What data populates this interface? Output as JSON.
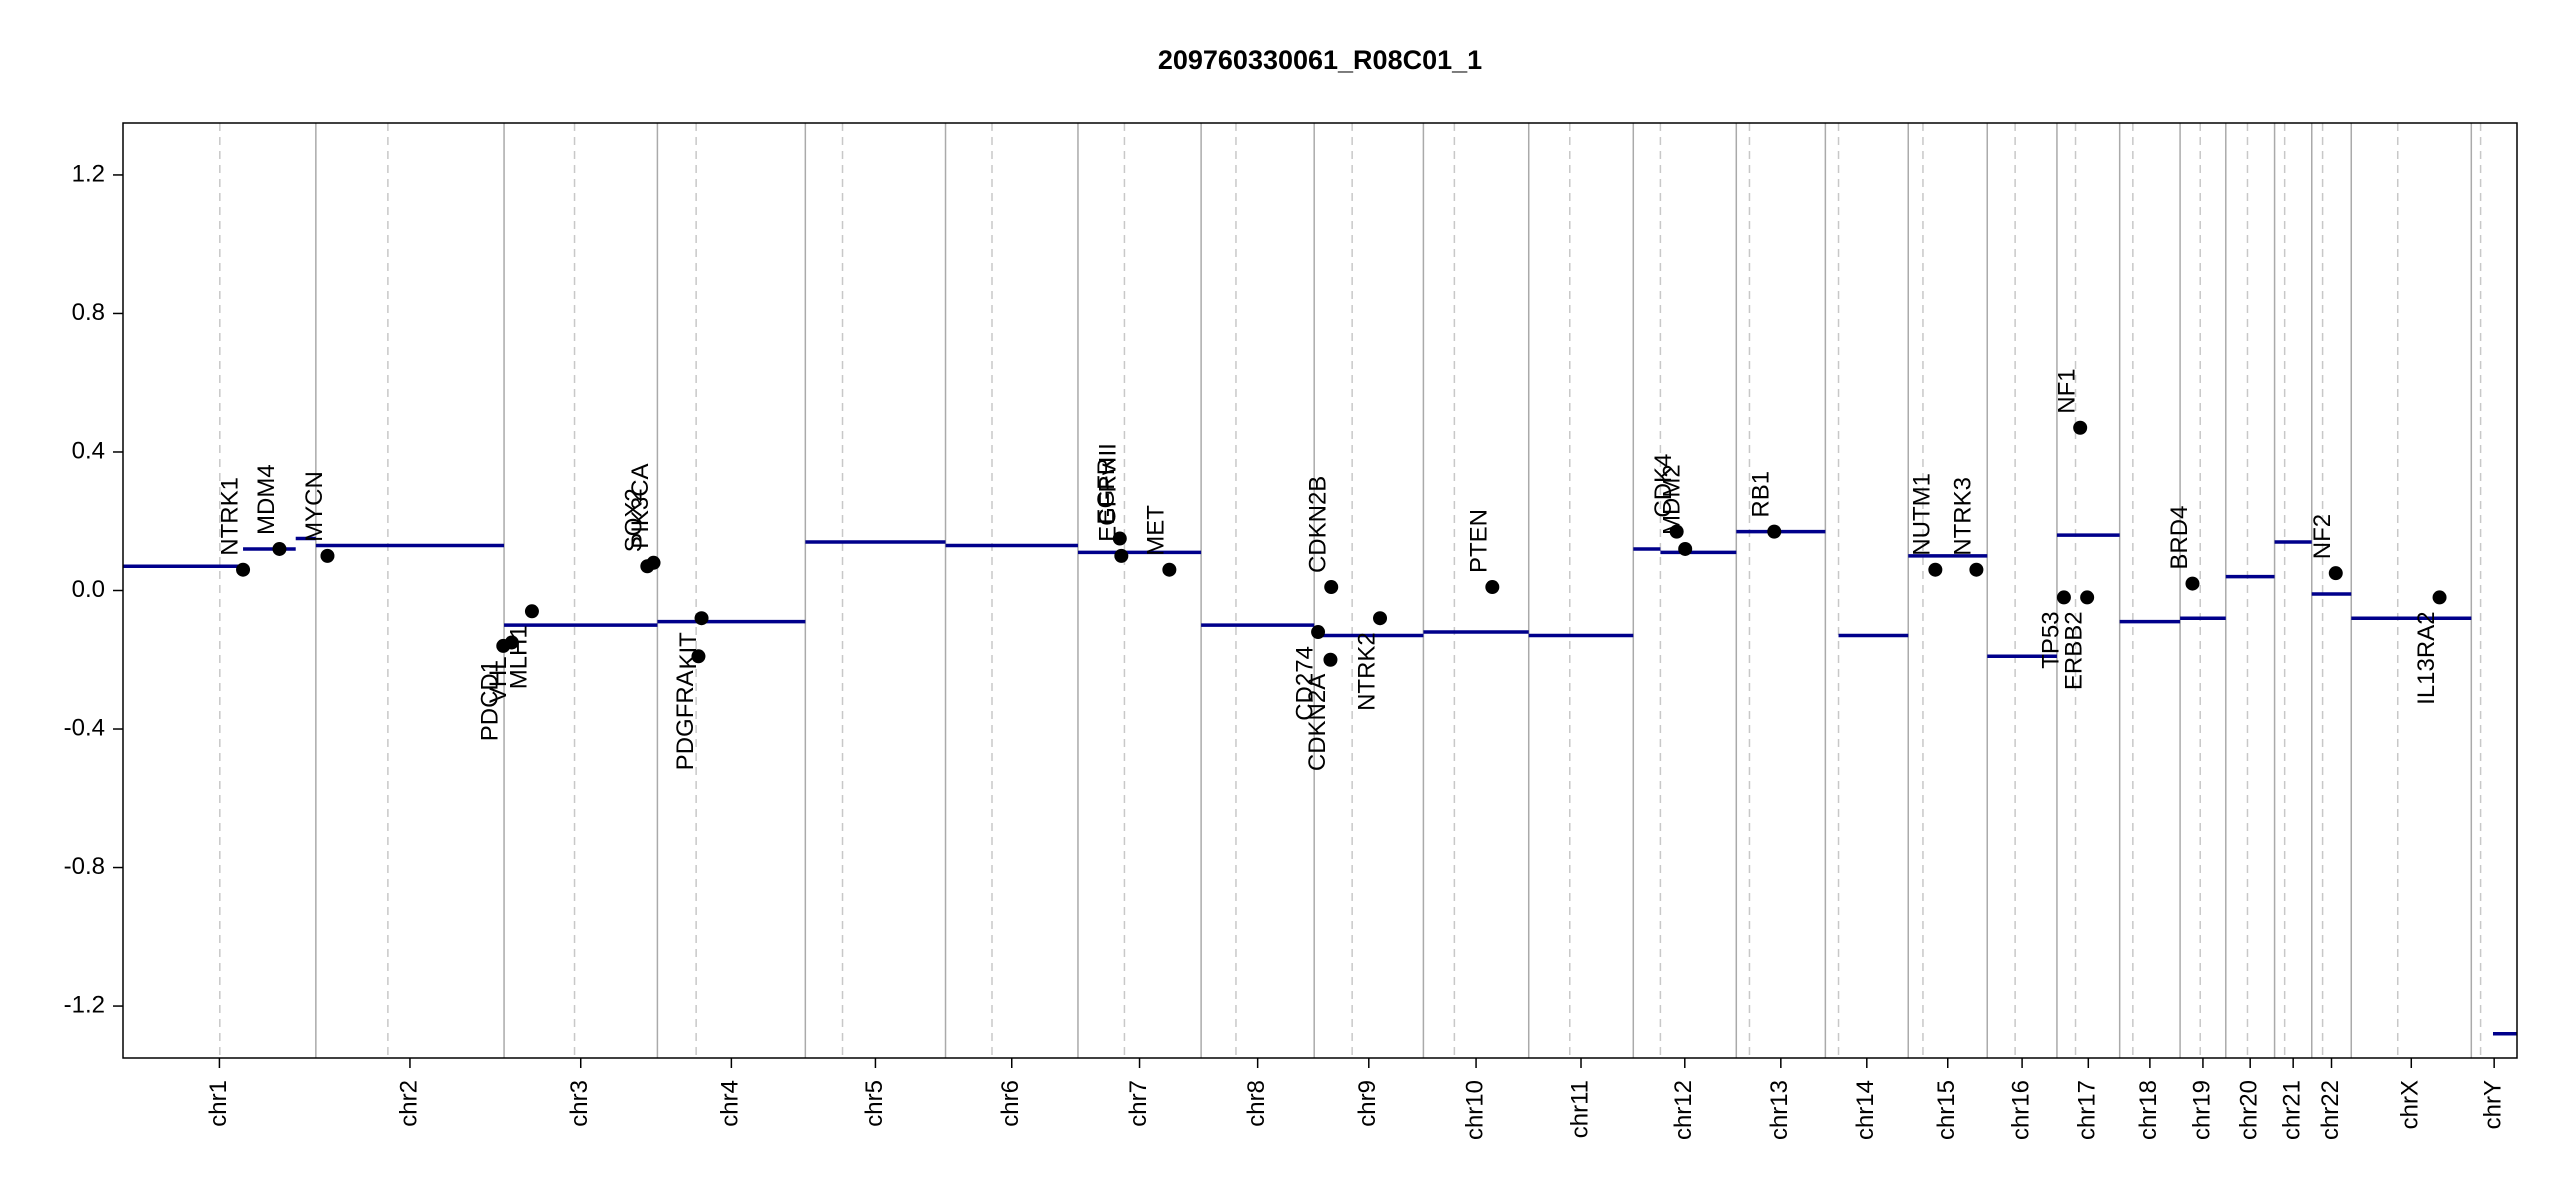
{
  "chart_data": {
    "type": "scatter",
    "title": "209760330061_R08C01_1",
    "xlim": [
      0,
      3091
    ],
    "ylim": [
      -1.35,
      1.35
    ],
    "yticks": [
      -1.2,
      -0.8,
      -0.4,
      {
        "value": 0,
        "label": "0.0"
      },
      0.4,
      0.8,
      1.2
    ],
    "segment_color": "#00008b",
    "gene_color": "#000000",
    "chromosomes": [
      {
        "name": "chr1",
        "start": 0,
        "end": 249,
        "centromere": 125
      },
      {
        "name": "chr2",
        "start": 249,
        "end": 492,
        "centromere": 342
      },
      {
        "name": "chr3",
        "start": 492,
        "end": 690,
        "centromere": 583
      },
      {
        "name": "chr4",
        "start": 690,
        "end": 881,
        "centromere": 740
      },
      {
        "name": "chr5",
        "start": 881,
        "end": 1062,
        "centromere": 929
      },
      {
        "name": "chr6",
        "start": 1062,
        "end": 1233,
        "centromere": 1122
      },
      {
        "name": "chr7",
        "start": 1233,
        "end": 1392,
        "centromere": 1293
      },
      {
        "name": "chr8",
        "start": 1392,
        "end": 1538,
        "centromere": 1437
      },
      {
        "name": "chr9",
        "start": 1538,
        "end": 1679,
        "centromere": 1587
      },
      {
        "name": "chr10",
        "start": 1679,
        "end": 1815,
        "centromere": 1719
      },
      {
        "name": "chr11",
        "start": 1815,
        "end": 1950,
        "centromere": 1868
      },
      {
        "name": "chr12",
        "start": 1950,
        "end": 2083,
        "centromere": 1985
      },
      {
        "name": "chr13",
        "start": 2083,
        "end": 2198,
        "centromere": 2100
      },
      {
        "name": "chr14",
        "start": 2198,
        "end": 2305,
        "centromere": 2215
      },
      {
        "name": "chr15",
        "start": 2305,
        "end": 2407,
        "centromere": 2324
      },
      {
        "name": "chr16",
        "start": 2407,
        "end": 2497,
        "centromere": 2443
      },
      {
        "name": "chr17",
        "start": 2497,
        "end": 2578,
        "centromere": 2521
      },
      {
        "name": "chr18",
        "start": 2578,
        "end": 2656,
        "centromere": 2595
      },
      {
        "name": "chr19",
        "start": 2656,
        "end": 2715,
        "centromere": 2682
      },
      {
        "name": "chr20",
        "start": 2715,
        "end": 2778,
        "centromere": 2743
      },
      {
        "name": "chr21",
        "start": 2778,
        "end": 2826,
        "centromere": 2791
      },
      {
        "name": "chr22",
        "start": 2826,
        "end": 2877,
        "centromere": 2840
      },
      {
        "name": "chrX",
        "start": 2877,
        "end": 3032,
        "centromere": 2937
      },
      {
        "name": "chrY",
        "start": 3032,
        "end": 3091,
        "centromere": 3044
      }
    ],
    "segments": [
      {
        "start": 0,
        "end": 155,
        "value": 0.07
      },
      {
        "start": 155,
        "end": 223,
        "value": 0.12
      },
      {
        "start": 223,
        "end": 249,
        "value": 0.15
      },
      {
        "start": 249,
        "end": 492,
        "value": 0.13
      },
      {
        "start": 492,
        "end": 690,
        "value": -0.1
      },
      {
        "start": 690,
        "end": 881,
        "value": -0.09
      },
      {
        "start": 881,
        "end": 1062,
        "value": 0.14
      },
      {
        "start": 1062,
        "end": 1233,
        "value": 0.13
      },
      {
        "start": 1233,
        "end": 1392,
        "value": 0.11
      },
      {
        "start": 1392,
        "end": 1538,
        "value": -0.1
      },
      {
        "start": 1538,
        "end": 1679,
        "value": -0.13
      },
      {
        "start": 1679,
        "end": 1815,
        "value": -0.12
      },
      {
        "start": 1815,
        "end": 1950,
        "value": -0.13
      },
      {
        "start": 1950,
        "end": 1985,
        "value": 0.12
      },
      {
        "start": 1985,
        "end": 2083,
        "value": 0.11
      },
      {
        "start": 2083,
        "end": 2198,
        "value": 0.17
      },
      {
        "start": 2215,
        "end": 2305,
        "value": -0.13
      },
      {
        "start": 2305,
        "end": 2407,
        "value": 0.1
      },
      {
        "start": 2407,
        "end": 2497,
        "value": -0.19
      },
      {
        "start": 2497,
        "end": 2578,
        "value": 0.16
      },
      {
        "start": 2578,
        "end": 2656,
        "value": -0.09
      },
      {
        "start": 2656,
        "end": 2715,
        "value": -0.08
      },
      {
        "start": 2715,
        "end": 2778,
        "value": 0.04
      },
      {
        "start": 2778,
        "end": 2826,
        "value": 0.14
      },
      {
        "start": 2826,
        "end": 2877,
        "value": -0.01
      },
      {
        "start": 2877,
        "end": 3032,
        "value": -0.08
      },
      {
        "start": 3060,
        "end": 3091,
        "value": -1.28
      }
    ],
    "genes": [
      {
        "name": "NTRK1",
        "x": 155,
        "value": 0.06
      },
      {
        "name": "MDM4",
        "x": 202,
        "value": 0.12
      },
      {
        "name": "MYCN",
        "x": 264,
        "value": 0.1
      },
      {
        "name": "PDCD1",
        "x": 491,
        "value": -0.16
      },
      {
        "name": "VHL",
        "x": 502,
        "value": -0.15
      },
      {
        "name": "MLH1",
        "x": 528,
        "value": -0.06
      },
      {
        "name": "SOX2",
        "x": 677,
        "value": 0.07
      },
      {
        "name": "PIK3CA",
        "x": 685,
        "value": 0.08
      },
      {
        "name": "PDGFRA",
        "x": 743,
        "value": -0.19
      },
      {
        "name": "KIT",
        "x": 747,
        "value": -0.08
      },
      {
        "name": "EGFR",
        "x": 1287,
        "value": 0.15
      },
      {
        "name": "EGFRvIII",
        "x": 1289,
        "value": 0.1
      },
      {
        "name": "MET",
        "x": 1351,
        "value": 0.06
      },
      {
        "name": "CD274",
        "x": 1543,
        "value": -0.12
      },
      {
        "name": "CDKN2A",
        "x": 1559,
        "value": -0.2
      },
      {
        "name": "CDKN2B",
        "x": 1560,
        "value": 0.01
      },
      {
        "name": "NTRK2",
        "x": 1623,
        "value": -0.08
      },
      {
        "name": "PTEN",
        "x": 1768,
        "value": 0.01
      },
      {
        "name": "CDK4",
        "x": 2006,
        "value": 0.17
      },
      {
        "name": "MDM2",
        "x": 2017,
        "value": 0.12
      },
      {
        "name": "RB1",
        "x": 2132,
        "value": 0.17
      },
      {
        "name": "NUTM1",
        "x": 2340,
        "value": 0.06
      },
      {
        "name": "NTRK3",
        "x": 2393,
        "value": 0.06
      },
      {
        "name": "TP53",
        "x": 2506,
        "value": -0.02
      },
      {
        "name": "NF1",
        "x": 2527,
        "value": 0.47
      },
      {
        "name": "ERBB2",
        "x": 2536,
        "value": -0.02
      },
      {
        "name": "BRD4",
        "x": 2672,
        "value": 0.02
      },
      {
        "name": "NF2",
        "x": 2857,
        "value": 0.05
      },
      {
        "name": "IL13RA2",
        "x": 2991,
        "value": -0.02
      }
    ]
  }
}
